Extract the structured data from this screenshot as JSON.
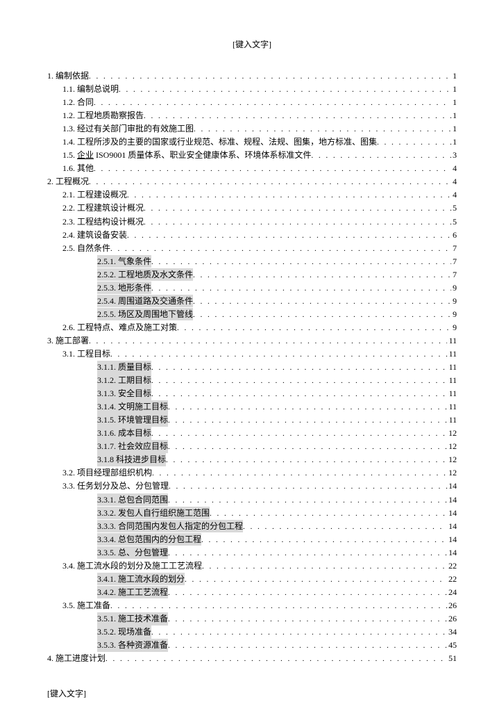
{
  "header": "[键入文字]",
  "footer": "[键入文字]",
  "toc": [
    {
      "indent": 0,
      "text": "1. 编制依据",
      "page": "1",
      "hl": false
    },
    {
      "indent": 1,
      "text": "1.1. 编制总说明",
      "page": "1",
      "hl": false
    },
    {
      "indent": 1,
      "text": "1.2. 合同",
      "page": "1",
      "hl": false
    },
    {
      "indent": 1,
      "text": "1.2. 工程地质勘察报告",
      "page": "1",
      "hl": false
    },
    {
      "indent": 1,
      "text": "1.3. 经过有关部门审批的有效施工图",
      "page": "1",
      "hl": false
    },
    {
      "indent": 1,
      "text": "1.4. 工程所涉及的主要的国家或行业规范、标准、规程、法规、图集，地方标准、图集",
      "page": "1",
      "hl": false
    },
    {
      "indent": 1,
      "text": "1.5. 企业 ISO9001 质量体系、职业安全健康体系、环境体系标准文件",
      "page": "3",
      "hl": false,
      "underlinePart": "企业"
    },
    {
      "indent": 1,
      "text": "1.6. 其他",
      "page": "4",
      "hl": false
    },
    {
      "indent": 0,
      "text": "2. 工程概况",
      "page": "4",
      "hl": false
    },
    {
      "indent": 1,
      "text": "2.1. 工程建设概况",
      "page": "4",
      "hl": false
    },
    {
      "indent": 1,
      "text": "2.2. 工程建筑设计概况",
      "page": "5",
      "hl": false
    },
    {
      "indent": 1,
      "text": "2.3. 工程结构设计概况",
      "page": "5",
      "hl": false
    },
    {
      "indent": 1,
      "text": "2.4. 建筑设备安装",
      "page": "6",
      "hl": false
    },
    {
      "indent": 1,
      "text": "2.5. 自然条件",
      "page": "7",
      "hl": false
    },
    {
      "indent": 2,
      "text": "2.5.1. 气象条件",
      "page": "7",
      "hl": true
    },
    {
      "indent": 2,
      "text": "2.5.2. 工程地质及水文条件",
      "page": "7",
      "hl": true
    },
    {
      "indent": 2,
      "text": "2.5.3. 地形条件",
      "page": "9",
      "hl": true
    },
    {
      "indent": 2,
      "text": "2.5.4. 周围道路及交通条件",
      "page": "9",
      "hl": true
    },
    {
      "indent": 2,
      "text": "2.5.5. 场区及周围地下管线",
      "page": "9",
      "hl": true
    },
    {
      "indent": 1,
      "text": "2.6. 工程特点、难点及施工对策",
      "page": "9",
      "hl": false
    },
    {
      "indent": 0,
      "text": "3. 施工部署",
      "page": "11",
      "hl": false
    },
    {
      "indent": 1,
      "text": "3.1. 工程目标",
      "page": "11",
      "hl": false
    },
    {
      "indent": 2,
      "text": "3.1.1. 质量目标",
      "page": "11",
      "hl": true
    },
    {
      "indent": 2,
      "text": "3.1.2. 工期目标",
      "page": "11",
      "hl": true
    },
    {
      "indent": 2,
      "text": "3.1.3. 安全目标",
      "page": "11",
      "hl": true
    },
    {
      "indent": 2,
      "text": "3.1.4. 文明施工目标",
      "page": "11",
      "hl": true
    },
    {
      "indent": 2,
      "text": "3.1.5. 环境管理目标",
      "page": "11",
      "hl": true
    },
    {
      "indent": 2,
      "text": "3.1.6. 成本目标",
      "page": "12",
      "hl": true
    },
    {
      "indent": 2,
      "text": "3.1.7. 社会效应目标",
      "page": "12",
      "hl": true
    },
    {
      "indent": 2,
      "text": "3.1.8 科技进步目标",
      "page": "12",
      "hl": true
    },
    {
      "indent": 1,
      "text": "3.2. 项目经理部组织机构",
      "page": "12",
      "hl": false
    },
    {
      "indent": 1,
      "text": "3.3. 任务划分及总、分包管理",
      "page": "14",
      "hl": false
    },
    {
      "indent": 2,
      "text": "3.3.1. 总包合同范围",
      "page": "14",
      "hl": true
    },
    {
      "indent": 2,
      "text": "3.3.2. 发包人自行组织施工范围",
      "page": "14",
      "hl": true
    },
    {
      "indent": 2,
      "text": "3.3.3. 合同范围内发包人指定的分包工程",
      "page": "14",
      "hl": true
    },
    {
      "indent": 2,
      "text": "3.3.4. 总包范围内的分包工程",
      "page": "14",
      "hl": true
    },
    {
      "indent": 2,
      "text": "3.3.5. 总、分包管理",
      "page": "14",
      "hl": true
    },
    {
      "indent": 1,
      "text": "3.4. 施工流水段的划分及施工工艺流程",
      "page": "22",
      "hl": false
    },
    {
      "indent": 2,
      "text": "3.4.1. 施工流水段的划分",
      "page": "22",
      "hl": true
    },
    {
      "indent": 2,
      "text": "3.4.2. 施工工艺流程",
      "page": "24",
      "hl": true
    },
    {
      "indent": 1,
      "text": "3.5. 施工准备",
      "page": "26",
      "hl": false
    },
    {
      "indent": 2,
      "text": "3.5.1. 施工技术准备",
      "page": "26",
      "hl": true
    },
    {
      "indent": 2,
      "text": "3.5.2. 现场准备",
      "page": "34",
      "hl": true
    },
    {
      "indent": 2,
      "text": "3.5.3. 各种资源准备",
      "page": "45",
      "hl": true
    },
    {
      "indent": 0,
      "text": "4. 施工进度计划",
      "page": "51",
      "hl": false
    }
  ]
}
